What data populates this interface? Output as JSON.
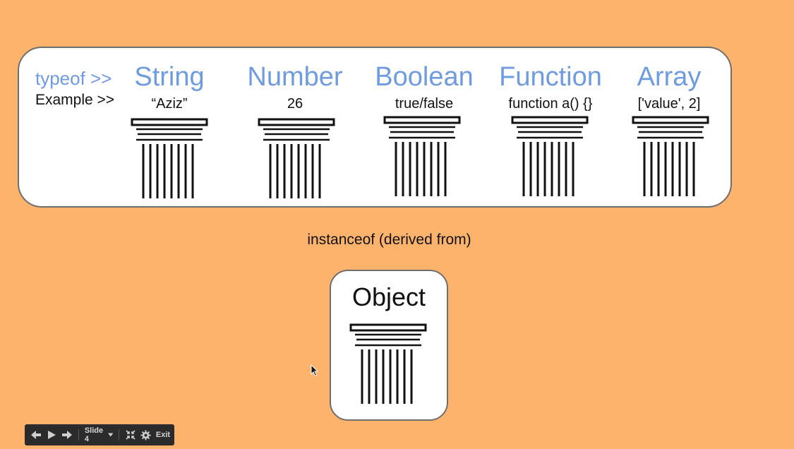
{
  "slide": {
    "background": "#FEB36C",
    "accent_color": "#6F9BE0",
    "row_labels": {
      "typeof": "typeof >>",
      "example": "Example >>"
    },
    "types": [
      {
        "name": "String",
        "example": "“Aziz”"
      },
      {
        "name": "Number",
        "example": "26"
      },
      {
        "name": "Boolean",
        "example": "true/false"
      },
      {
        "name": "Function",
        "example": "function a() {}"
      },
      {
        "name": "Array",
        "example": "['value', 2]"
      }
    ],
    "instanceof_caption": "instanceof (derived from)",
    "object_label": "Object",
    "pillar_icon": "greek-column-icon"
  },
  "controls": {
    "prev_icon": "arrow-left-icon",
    "play_icon": "play-icon",
    "next_icon": "arrow-right-icon",
    "slide_label": "Slide 4",
    "dropdown_icon": "caret-down-icon",
    "fullscreen_icon": "collapse-icon",
    "settings_icon": "gear-icon",
    "exit_label": "Exit"
  }
}
